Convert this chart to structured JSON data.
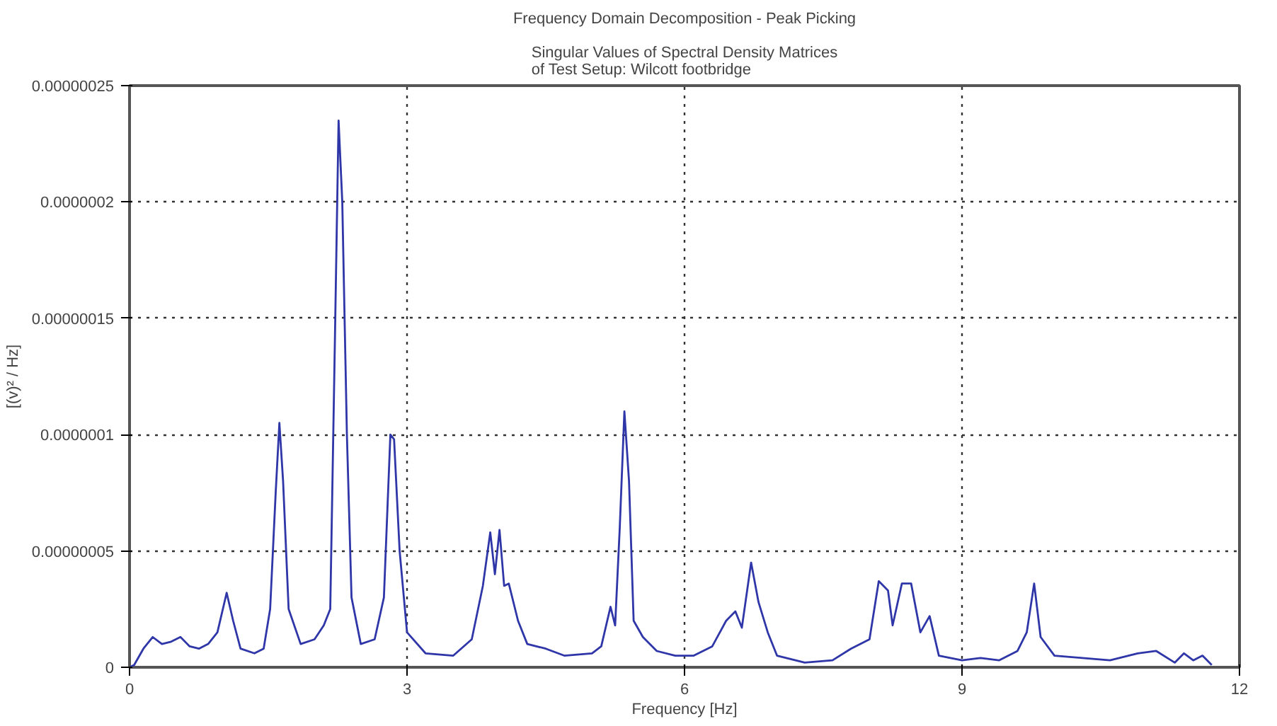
{
  "chart_data": {
    "type": "line",
    "title": "Frequency Domain Decomposition - Peak Picking",
    "subtitle": "Singular Values of Spectral Density Matrices\nof Test Setup: Wilcott footbridge",
    "xlabel": "Frequency [Hz]",
    "ylabel": "[(v)² / Hz]",
    "x": [
      0,
      0.05,
      0.15,
      0.25,
      0.35,
      0.45,
      0.55,
      0.65,
      0.75,
      0.85,
      0.95,
      1.05,
      1.12,
      1.2,
      1.35,
      1.45,
      1.52,
      1.58,
      1.62,
      1.66,
      1.72,
      1.85,
      2.0,
      2.1,
      2.17,
      2.22,
      2.26,
      2.3,
      2.35,
      2.4,
      2.5,
      2.65,
      2.75,
      2.82,
      2.86,
      2.92,
      3.0,
      3.2,
      3.5,
      3.7,
      3.82,
      3.9,
      3.95,
      4.0,
      4.05,
      4.1,
      4.2,
      4.3,
      4.5,
      4.7,
      5.0,
      5.1,
      5.2,
      5.25,
      5.3,
      5.35,
      5.4,
      5.45,
      5.55,
      5.7,
      5.9,
      6.1,
      6.3,
      6.45,
      6.55,
      6.62,
      6.72,
      6.8,
      6.9,
      7.0,
      7.3,
      7.6,
      7.8,
      8.0,
      8.1,
      8.2,
      8.25,
      8.35,
      8.45,
      8.55,
      8.65,
      8.75,
      9.0,
      9.2,
      9.4,
      9.6,
      9.7,
      9.78,
      9.85,
      10.0,
      10.3,
      10.6,
      10.9,
      11.1,
      11.3,
      11.4,
      11.5,
      11.6,
      11.7
    ],
    "series": [
      {
        "color": "#2f36a8",
        "values": [
          0,
          1e-09,
          8e-09,
          1.3e-08,
          1e-08,
          1.1e-08,
          1.3e-08,
          9e-09,
          8e-09,
          1e-08,
          1.5e-08,
          3.2e-08,
          2e-08,
          8e-09,
          6e-09,
          8e-09,
          2.5e-08,
          7.5e-08,
          1.05e-07,
          8e-08,
          2.5e-08,
          1e-08,
          1.2e-08,
          1.8e-08,
          2.5e-08,
          1.4e-07,
          2.35e-07,
          2e-07,
          1e-07,
          3e-08,
          1e-08,
          1.2e-08,
          3e-08,
          1e-07,
          9.8e-08,
          5e-08,
          1.5e-08,
          6e-09,
          5e-09,
          1.2e-08,
          3.5e-08,
          5.8e-08,
          4e-08,
          5.9e-08,
          3.5e-08,
          3.6e-08,
          2e-08,
          1e-08,
          8e-09,
          5e-09,
          6e-09,
          9e-09,
          2.6e-08,
          1.8e-08,
          6e-08,
          1.1e-07,
          8e-08,
          2e-08,
          1.3e-08,
          7e-09,
          5e-09,
          5e-09,
          9e-09,
          2e-08,
          2.4e-08,
          1.7e-08,
          4.5e-08,
          2.8e-08,
          1.5e-08,
          5e-09,
          2e-09,
          3e-09,
          8e-09,
          1.2e-08,
          3.7e-08,
          3.3e-08,
          1.8e-08,
          3.6e-08,
          3.6e-08,
          1.5e-08,
          2.2e-08,
          5e-09,
          3e-09,
          4e-09,
          3e-09,
          7e-09,
          1.5e-08,
          3.6e-08,
          1.3e-08,
          5e-09,
          4e-09,
          3e-09,
          6e-09,
          7e-09,
          2e-09,
          6e-09,
          3e-09,
          5e-09,
          1e-09
        ]
      }
    ],
    "xlim": [
      0,
      12
    ],
    "xticks": [
      0,
      3,
      6,
      9,
      12
    ],
    "ylim": [
      0,
      2.5e-07
    ],
    "yticks": [
      {
        "value": 0,
        "label": "0"
      },
      {
        "value": 5e-08,
        "label": "0.00000005"
      },
      {
        "value": 1e-07,
        "label": "0.0000001"
      },
      {
        "value": 1.5e-07,
        "label": "0.00000015"
      },
      {
        "value": 2e-07,
        "label": "0.0000002"
      },
      {
        "value": 2.5e-07,
        "label": "0.00000025"
      }
    ],
    "grid": true,
    "line_style": "solid",
    "marker": "none"
  }
}
